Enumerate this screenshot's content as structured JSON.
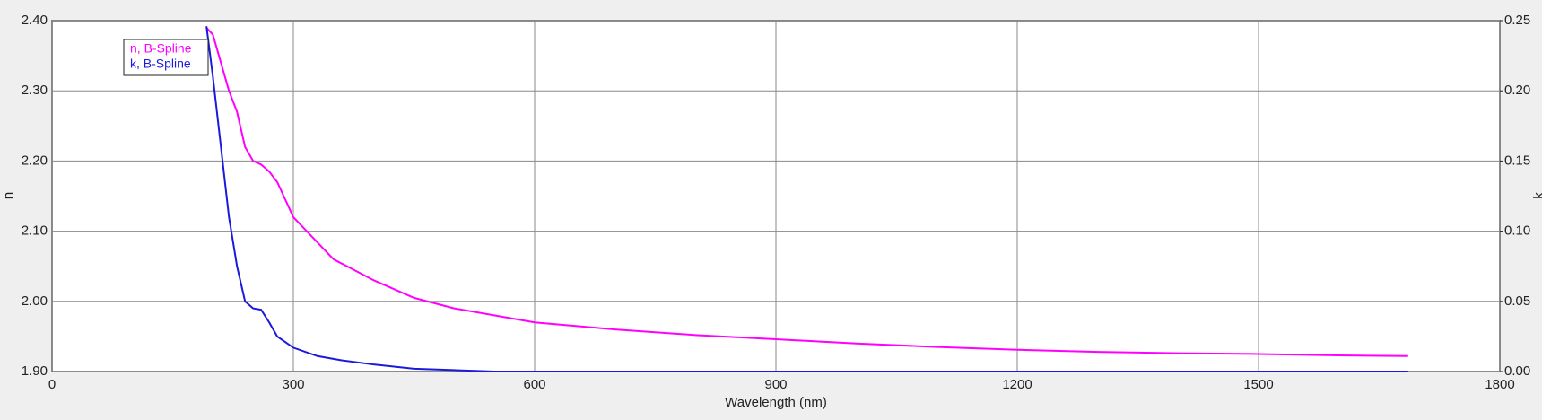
{
  "chart_data": {
    "type": "line",
    "x_label": "Wavelength (nm)",
    "y_label": "n",
    "y2_label": "k",
    "xlim": [
      0,
      1800
    ],
    "xticks": [
      0,
      300,
      600,
      900,
      1200,
      1500,
      1800
    ],
    "ylim": [
      1.9,
      2.4
    ],
    "yticks": [
      {
        "value": 1.9,
        "label": "1.90"
      },
      {
        "value": 2.0,
        "label": "2.00"
      },
      {
        "value": 2.1,
        "label": "2.10"
      },
      {
        "value": 2.2,
        "label": "2.20"
      },
      {
        "value": 2.3,
        "label": "2.30"
      },
      {
        "value": 2.4,
        "label": "2.40"
      }
    ],
    "y2lim": [
      0,
      0.25
    ],
    "y2ticks": [
      {
        "value": 0,
        "label": "0.00"
      },
      {
        "value": 0.05,
        "label": "0.05"
      },
      {
        "value": 0.1,
        "label": "0.10"
      },
      {
        "value": 0.15,
        "label": "0.15"
      },
      {
        "value": 0.2,
        "label": "0.20"
      },
      {
        "value": 0.25,
        "label": "0.25"
      }
    ],
    "grid": true,
    "legend": "upper left",
    "series": [
      {
        "name": "n, B-Spline",
        "color": "#ff00ff",
        "x": [
          192,
          200,
          210,
          220,
          230,
          240,
          250,
          260,
          270,
          280,
          300,
          350,
          400,
          450,
          500,
          600,
          700,
          800,
          900,
          1000,
          1100,
          1200,
          1300,
          1400,
          1500,
          1600,
          1686
        ],
        "values": [
          2.39,
          2.38,
          2.34,
          2.3,
          2.27,
          2.22,
          2.2,
          2.195,
          2.185,
          2.17,
          2.12,
          2.06,
          2.03,
          2.005,
          1.99,
          1.97,
          1.96,
          1.952,
          1.946,
          1.94,
          1.935,
          1.931,
          1.928,
          1.926,
          1.925,
          1.923,
          1.922
        ]
      },
      {
        "name": "k, B-Spline",
        "color": "#1a1adc",
        "axis": "y2",
        "x": [
          192,
          200,
          210,
          220,
          230,
          240,
          250,
          260,
          270,
          280,
          300,
          330,
          360,
          400,
          450,
          500,
          550,
          1686
        ],
        "values": [
          0.246,
          0.21,
          0.16,
          0.11,
          0.075,
          0.05,
          0.045,
          0.044,
          0.035,
          0.025,
          0.017,
          0.011,
          0.008,
          0.005,
          0.002,
          0.001,
          0,
          0
        ]
      }
    ]
  }
}
